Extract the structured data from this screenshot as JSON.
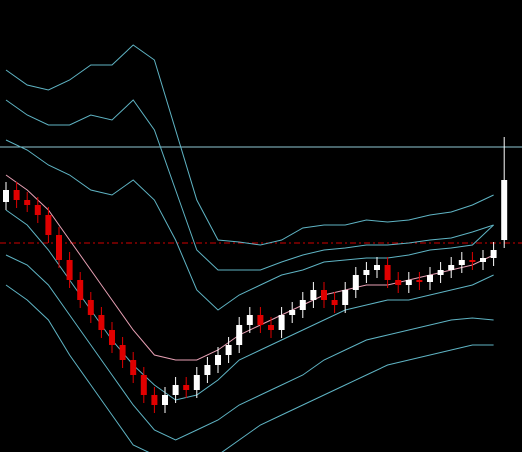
{
  "chart_data": {
    "type": "candlestick",
    "ylim": [
      0,
      452
    ],
    "up_color": "#ffffff",
    "down_color": "#e00000",
    "candles": {
      "open": [
        250,
        262,
        252,
        247,
        237,
        217,
        192,
        172,
        152,
        137,
        122,
        107,
        92,
        77,
        57,
        47,
        57,
        67,
        62,
        77,
        87,
        97,
        107,
        127,
        137,
        127,
        122,
        137,
        142,
        152,
        162,
        152,
        147,
        162,
        177,
        182,
        187,
        172,
        167,
        172,
        170,
        177,
        182,
        187,
        192,
        190,
        194,
        212
      ],
      "high": [
        270,
        270,
        260,
        255,
        245,
        225,
        200,
        180,
        160,
        145,
        130,
        115,
        100,
        85,
        65,
        65,
        75,
        75,
        85,
        95,
        105,
        115,
        135,
        145,
        145,
        135,
        145,
        150,
        160,
        170,
        170,
        160,
        170,
        185,
        190,
        195,
        195,
        180,
        180,
        180,
        185,
        190,
        195,
        200,
        200,
        202,
        210,
        315
      ],
      "low": [
        242,
        244,
        240,
        229,
        209,
        184,
        164,
        144,
        129,
        114,
        99,
        84,
        69,
        49,
        39,
        39,
        49,
        54,
        54,
        69,
        79,
        89,
        99,
        119,
        119,
        114,
        114,
        129,
        134,
        144,
        144,
        139,
        139,
        154,
        169,
        174,
        164,
        159,
        159,
        162,
        162,
        169,
        174,
        179,
        182,
        182,
        186,
        204
      ],
      "close": [
        262,
        252,
        247,
        237,
        217,
        192,
        172,
        152,
        137,
        122,
        107,
        92,
        77,
        57,
        47,
        57,
        67,
        62,
        77,
        87,
        97,
        107,
        127,
        137,
        127,
        122,
        137,
        142,
        152,
        162,
        152,
        147,
        162,
        177,
        182,
        187,
        172,
        167,
        172,
        170,
        177,
        182,
        187,
        192,
        190,
        194,
        202,
        272
      ]
    },
    "lines": [
      {
        "color": "#5fb4c4",
        "x": [
          0,
          2,
          4,
          6,
          8,
          10,
          12,
          14,
          16,
          18,
          20,
          22,
          24,
          26,
          28,
          30,
          32,
          34,
          36,
          38,
          40,
          42,
          44,
          46
        ],
        "values": [
          382,
          367,
          362,
          372,
          387,
          387,
          407,
          392,
          322,
          252,
          212,
          210,
          207,
          212,
          224,
          227,
          227,
          232,
          230,
          232,
          237,
          240,
          247,
          257
        ]
      },
      {
        "color": "#5fb4c4",
        "x": [
          0,
          2,
          4,
          6,
          8,
          10,
          12,
          14,
          16,
          18,
          20,
          22,
          24,
          26,
          28,
          30,
          32,
          34,
          36,
          38,
          40,
          42,
          44,
          46
        ],
        "values": [
          352,
          337,
          327,
          327,
          337,
          332,
          352,
          322,
          262,
          202,
          182,
          182,
          182,
          190,
          197,
          202,
          204,
          207,
          207,
          209,
          212,
          214,
          220,
          227
        ]
      },
      {
        "color": "#5fb4c4",
        "x": [
          0,
          2,
          4,
          6,
          8,
          10,
          12,
          14,
          16,
          18,
          20,
          22,
          24,
          26,
          28,
          30,
          32,
          34,
          36,
          38,
          40,
          42,
          44,
          46
        ],
        "values": [
          312,
          302,
          287,
          277,
          262,
          257,
          272,
          252,
          212,
          162,
          142,
          157,
          167,
          177,
          182,
          190,
          192,
          194,
          194,
          197,
          202,
          204,
          207,
          227
        ]
      },
      {
        "color": "#e8a0b4",
        "x": [
          0,
          2,
          4,
          6,
          8,
          10,
          12,
          14,
          16,
          18,
          20,
          22,
          24,
          26,
          28,
          30,
          32,
          34,
          36,
          38,
          40,
          42,
          44,
          46
        ],
        "values": [
          277,
          262,
          242,
          212,
          182,
          152,
          122,
          97,
          92,
          92,
          102,
          117,
          127,
          137,
          147,
          157,
          162,
          167,
          167,
          172,
          177,
          182,
          187,
          197
        ]
      },
      {
        "color": "#5fb4c4",
        "x": [
          0,
          2,
          4,
          6,
          8,
          10,
          12,
          14,
          16,
          18,
          20,
          22,
          24,
          26,
          28,
          30,
          32,
          34,
          36,
          38,
          40,
          42,
          44,
          46
        ],
        "values": [
          242,
          227,
          202,
          172,
          142,
          112,
          87,
          67,
          52,
          57,
          72,
          92,
          102,
          112,
          122,
          132,
          142,
          147,
          152,
          152,
          157,
          162,
          167,
          177
        ]
      },
      {
        "color": "#5fb4c4",
        "x": [
          0,
          2,
          4,
          6,
          8,
          10,
          12,
          14,
          16,
          18,
          20,
          22,
          24,
          26,
          28,
          30,
          32,
          34,
          36,
          38,
          40,
          42,
          44,
          46
        ],
        "values": [
          197,
          187,
          167,
          137,
          107,
          77,
          47,
          22,
          12,
          22,
          32,
          47,
          57,
          67,
          77,
          92,
          102,
          112,
          117,
          122,
          127,
          132,
          134,
          132
        ]
      },
      {
        "color": "#5fb4c4",
        "x": [
          0,
          2,
          4,
          6,
          8,
          10,
          12,
          14,
          16,
          18,
          20,
          22,
          24,
          26,
          28,
          30,
          32,
          34,
          36,
          38,
          40,
          42,
          44,
          46
        ],
        "values": [
          167,
          152,
          132,
          97,
          67,
          37,
          7,
          -3,
          -8,
          -8,
          -3,
          12,
          27,
          37,
          47,
          57,
          67,
          77,
          87,
          92,
          97,
          102,
          107,
          107
        ]
      }
    ],
    "hlines": [
      {
        "value": 305,
        "color": "#8fc8d4",
        "dashed": false
      },
      {
        "value": 209,
        "color": "#d00000",
        "dashed": true
      }
    ]
  }
}
